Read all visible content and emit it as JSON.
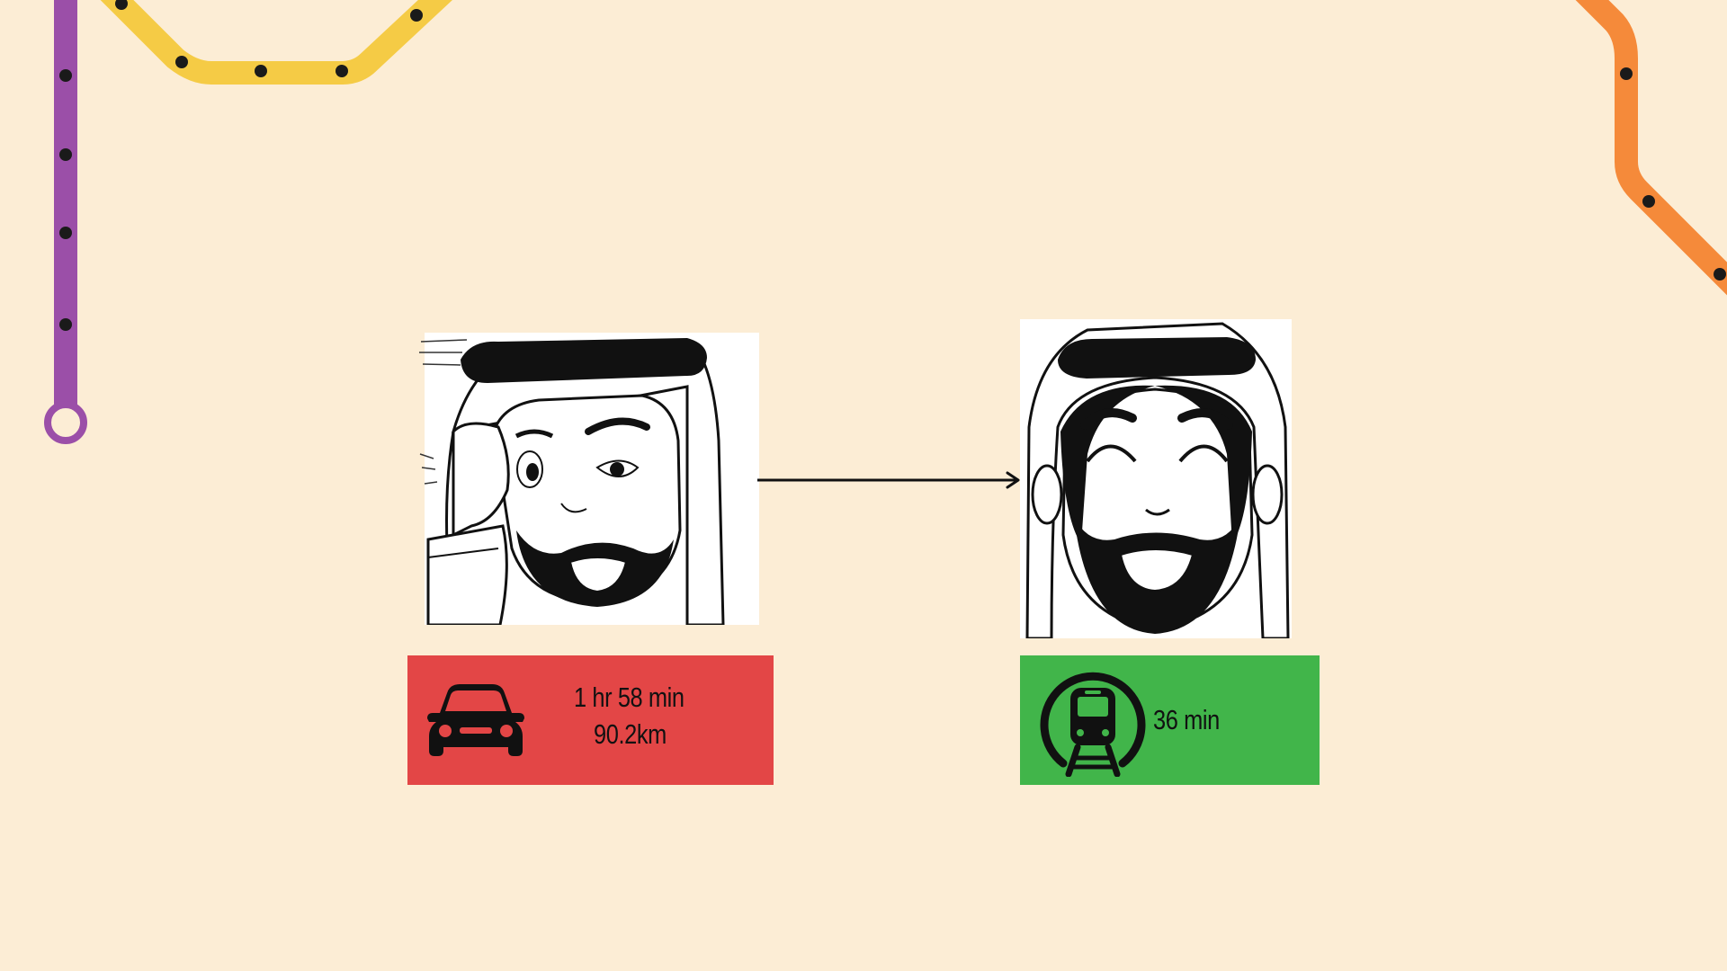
{
  "colors": {
    "background": "#FCEDD5",
    "purple_line": "#9B4FA8",
    "yellow_line": "#F5CB45",
    "orange_line": "#F58A3A",
    "station_dot": "#1A1A1A",
    "car_box": "#E34646",
    "metro_box": "#41B54A",
    "text": "#111111"
  },
  "car_option": {
    "icon": "car-icon",
    "duration": "1 hr 58 min",
    "distance": "90.2km"
  },
  "metro_option": {
    "icon": "metro-train-icon",
    "duration": "36 min"
  },
  "characters": {
    "before": "stressed-man-illustration",
    "after": "happy-man-illustration"
  },
  "transition": "arrow-right-icon"
}
